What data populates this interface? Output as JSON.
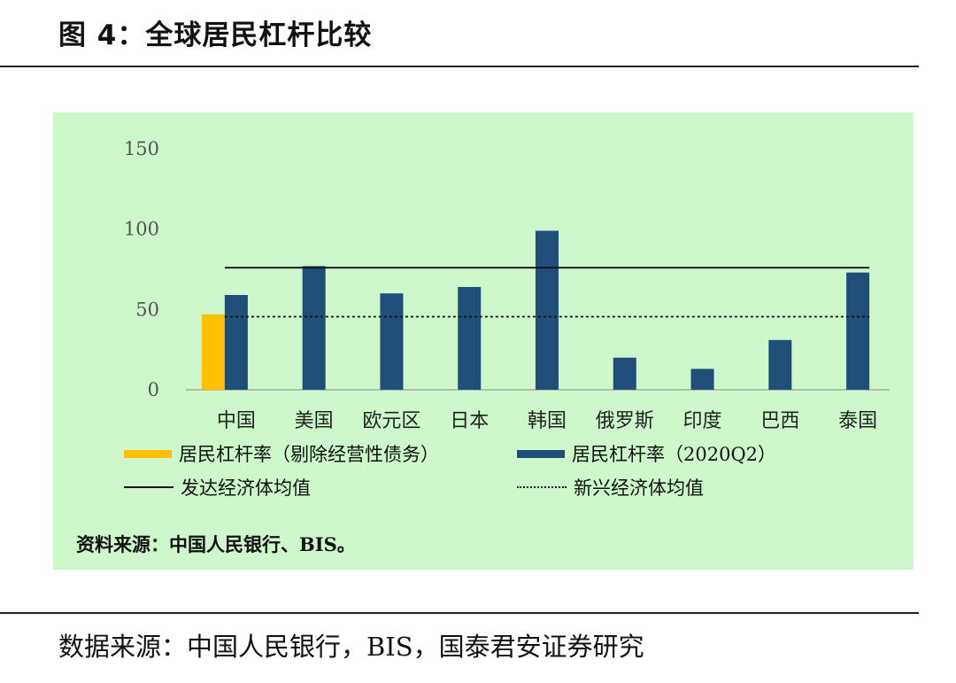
{
  "figure": {
    "title": "图 4：全球居民杠杆比较",
    "panel_source": "资料来源：中国人民银行、BIS。",
    "footer_source": "数据来源：中国人民银行，BIS，国泰君安证券研究"
  },
  "legend": {
    "series1": "居民杠杆率（剔除经营性债务）",
    "series2": "居民杠杆率（2020Q2）",
    "developed_avg": "发达经济体均值",
    "emerging_avg": "新兴经济体均值"
  },
  "colors": {
    "series1": "#ffc000",
    "series2": "#1f4e79",
    "panel_bg": "#ccf8cc",
    "axis": "#555555"
  },
  "chart_data": {
    "type": "bar",
    "categories": [
      "中国",
      "美国",
      "欧元区",
      "日本",
      "韩国",
      "俄罗斯",
      "印度",
      "巴西",
      "泰国"
    ],
    "series": [
      {
        "name": "居民杠杆率（剔除经营性债务）",
        "values": [
          47,
          null,
          null,
          null,
          null,
          null,
          null,
          null,
          null
        ]
      },
      {
        "name": "居民杠杆率（2020Q2）",
        "values": [
          59,
          77,
          60,
          64,
          99,
          20,
          13,
          31,
          73
        ]
      }
    ],
    "reference_lines": [
      {
        "name": "发达经济体均值",
        "value": 76,
        "style": "solid"
      },
      {
        "name": "新兴经济体均值",
        "value": 45.5,
        "style": "dotted"
      }
    ],
    "y_ticks": [
      "0",
      "50",
      "100",
      "150"
    ],
    "ylim": [
      0,
      150
    ],
    "legend_position": "bottom",
    "grid": false
  }
}
